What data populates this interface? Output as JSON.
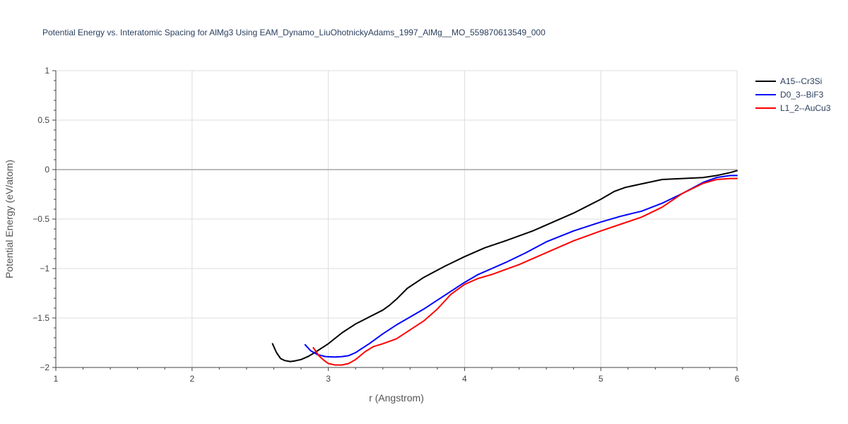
{
  "chart_data": {
    "type": "line",
    "title": "Potential Energy vs. Interatomic Spacing for AlMg3 Using EAM_Dynamo_LiuOhotnickyAdams_1997_AlMg__MO_559870613549_000",
    "xlabel": "r (Angstrom)",
    "ylabel": "Potential Energy (eV/atom)",
    "xlim": [
      1,
      6
    ],
    "ylim": [
      -2,
      1
    ],
    "x_ticks": [
      1,
      2,
      3,
      4,
      5,
      6
    ],
    "y_ticks": [
      1,
      0.5,
      0,
      -0.5,
      -1,
      -1.5,
      -2
    ],
    "x_tick_labels": [
      "1",
      "2",
      "3",
      "4",
      "5",
      "6"
    ],
    "y_tick_labels": [
      "1",
      "0.5",
      "0",
      "−0.5",
      "−1",
      "−1.5",
      "−2"
    ],
    "grid": true,
    "legend_position": "top-right",
    "series": [
      {
        "name": "A15--Cr3Si",
        "color": "#000000",
        "x": [
          2.59,
          2.62,
          2.65,
          2.68,
          2.72,
          2.75,
          2.8,
          2.85,
          2.9,
          3.0,
          3.1,
          3.2,
          3.3,
          3.4,
          3.45,
          3.5,
          3.58,
          3.7,
          3.85,
          4.0,
          4.15,
          4.3,
          4.5,
          4.65,
          4.8,
          4.9,
          5.0,
          5.1,
          5.18,
          5.28,
          5.45,
          5.6,
          5.75,
          5.85,
          5.95,
          6.0
        ],
        "y": [
          -1.76,
          -1.85,
          -1.91,
          -1.93,
          -1.94,
          -1.935,
          -1.92,
          -1.89,
          -1.85,
          -1.76,
          -1.65,
          -1.56,
          -1.49,
          -1.42,
          -1.37,
          -1.31,
          -1.2,
          -1.09,
          -0.98,
          -0.88,
          -0.79,
          -0.72,
          -0.62,
          -0.53,
          -0.44,
          -0.37,
          -0.3,
          -0.22,
          -0.18,
          -0.15,
          -0.1,
          -0.09,
          -0.08,
          -0.06,
          -0.03,
          -0.01
        ]
      },
      {
        "name": "D0_3--BiF3",
        "color": "#0000ff",
        "x": [
          2.83,
          2.87,
          2.92,
          2.98,
          3.05,
          3.1,
          3.15,
          3.2,
          3.3,
          3.4,
          3.5,
          3.6,
          3.7,
          3.8,
          3.9,
          4.0,
          4.1,
          4.2,
          4.3,
          4.45,
          4.6,
          4.8,
          5.0,
          5.15,
          5.3,
          5.45,
          5.6,
          5.75,
          5.85,
          5.95,
          6.0
        ],
        "y": [
          -1.77,
          -1.83,
          -1.87,
          -1.89,
          -1.895,
          -1.89,
          -1.88,
          -1.85,
          -1.76,
          -1.66,
          -1.57,
          -1.49,
          -1.41,
          -1.32,
          -1.23,
          -1.14,
          -1.06,
          -1.0,
          -0.94,
          -0.84,
          -0.73,
          -0.62,
          -0.53,
          -0.47,
          -0.42,
          -0.34,
          -0.24,
          -0.13,
          -0.08,
          -0.06,
          -0.06
        ]
      },
      {
        "name": "L1_2--AuCu3",
        "color": "#ff0000",
        "x": [
          2.89,
          2.93,
          2.97,
          3.0,
          3.05,
          3.1,
          3.15,
          3.2,
          3.27,
          3.33,
          3.4,
          3.5,
          3.6,
          3.7,
          3.8,
          3.9,
          4.0,
          4.1,
          4.2,
          4.4,
          4.6,
          4.8,
          5.0,
          5.15,
          5.3,
          5.45,
          5.6,
          5.75,
          5.85,
          5.95,
          6.0
        ],
        "y": [
          -1.8,
          -1.88,
          -1.93,
          -1.96,
          -1.975,
          -1.975,
          -1.96,
          -1.92,
          -1.84,
          -1.79,
          -1.76,
          -1.71,
          -1.62,
          -1.53,
          -1.41,
          -1.26,
          -1.16,
          -1.1,
          -1.06,
          -0.96,
          -0.84,
          -0.72,
          -0.62,
          -0.55,
          -0.48,
          -0.38,
          -0.24,
          -0.14,
          -0.1,
          -0.09,
          -0.09
        ]
      }
    ]
  }
}
